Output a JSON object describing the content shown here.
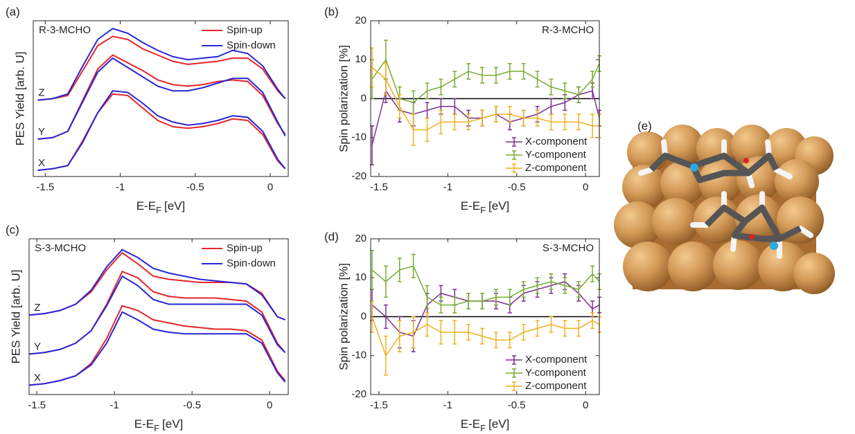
{
  "chart_data": [
    {
      "type": "line",
      "panel_label": "(a)",
      "annotation": "R-3-MCHO",
      "ylabel": "PES Yield [arb. U]",
      "xlabel": {
        "main": "E-E",
        "sub": "F",
        "unit": "[eV]"
      },
      "xlim": [
        -1.58,
        0.12
      ],
      "xticks": [
        -1.5,
        -1,
        -0.5,
        0
      ],
      "ylim": [
        0,
        10
      ],
      "legend": "upper right",
      "offset_labels": [
        "Z",
        "Y",
        "X"
      ],
      "x": [
        -1.55,
        -1.45,
        -1.35,
        -1.25,
        -1.15,
        -1.05,
        -0.95,
        -0.85,
        -0.75,
        -0.65,
        -0.55,
        -0.45,
        -0.35,
        -0.25,
        -0.15,
        -0.05,
        0.05,
        0.1
      ],
      "series": [
        {
          "name": "Spin-up",
          "color": "#e8242a",
          "values": [
            [
              4.9,
              5.0,
              5.2,
              6.8,
              8.4,
              9.0,
              8.8,
              8.2,
              7.8,
              7.4,
              7.2,
              7.3,
              7.4,
              7.6,
              7.6,
              6.9,
              5.5,
              5.0
            ],
            [
              2.4,
              2.5,
              2.9,
              4.9,
              6.9,
              7.8,
              7.3,
              6.8,
              6.2,
              5.9,
              5.8,
              5.9,
              6.1,
              6.2,
              6.1,
              5.2,
              3.4,
              2.7
            ],
            [
              0.4,
              0.5,
              0.7,
              2.3,
              4.1,
              5.3,
              5.2,
              4.4,
              3.6,
              3.2,
              3.1,
              3.2,
              3.4,
              3.7,
              3.6,
              2.7,
              1.0,
              0.5
            ]
          ]
        },
        {
          "name": "Spin-down",
          "color": "#2626d9",
          "values": [
            [
              4.9,
              5.0,
              5.3,
              7.1,
              8.8,
              9.5,
              9.2,
              8.6,
              8.1,
              7.7,
              7.5,
              7.6,
              7.7,
              8.1,
              7.9,
              7.1,
              5.6,
              5.0
            ],
            [
              2.4,
              2.5,
              2.9,
              4.8,
              6.7,
              7.6,
              7.0,
              6.4,
              5.8,
              5.5,
              5.5,
              5.7,
              6.0,
              6.3,
              6.3,
              5.4,
              3.5,
              2.6
            ],
            [
              0.4,
              0.5,
              0.7,
              2.2,
              4.1,
              5.5,
              5.4,
              4.7,
              3.9,
              3.5,
              3.3,
              3.4,
              3.6,
              3.9,
              3.8,
              2.9,
              1.1,
              0.5
            ]
          ]
        }
      ]
    },
    {
      "type": "errorbar",
      "panel_label": "(b)",
      "annotation": "R-3-MCHO",
      "ylabel": "Spin polarization [%]",
      "xlabel": {
        "main": "E-E",
        "sub": "F",
        "unit": "[eV]"
      },
      "xlim": [
        -1.56,
        0.1
      ],
      "xticks": [
        -1.5,
        -1,
        -0.5,
        0
      ],
      "ylim": [
        -20,
        20
      ],
      "yticks": [
        -20,
        -10,
        0,
        10,
        20
      ],
      "hline": 0,
      "legend": "lower right",
      "x": [
        -1.55,
        -1.45,
        -1.35,
        -1.25,
        -1.15,
        -1.05,
        -0.95,
        -0.85,
        -0.75,
        -0.65,
        -0.55,
        -0.45,
        -0.35,
        -0.25,
        -0.15,
        -0.05,
        0.05,
        0.1
      ],
      "series": [
        {
          "name": "X-component",
          "color": "#7e2f8e",
          "values": [
            -12,
            2,
            -3,
            -4,
            -3,
            -2,
            -2,
            -5,
            -5,
            -4,
            -6,
            -5,
            -4,
            -2,
            -1,
            1,
            2,
            -5
          ],
          "errors": [
            5,
            3,
            3,
            3,
            2,
            2,
            2,
            2,
            2,
            2,
            2,
            2,
            2,
            2,
            2,
            2,
            2,
            2
          ]
        },
        {
          "name": "Y-component",
          "color": "#77ac30",
          "values": [
            5,
            10,
            0,
            -1,
            2,
            3,
            5,
            7,
            6,
            6,
            7,
            7,
            5,
            3,
            2,
            1,
            5,
            9
          ],
          "errors": [
            5,
            5,
            3,
            3,
            2,
            2,
            2,
            2,
            2,
            2,
            2,
            2,
            2,
            2,
            2,
            2,
            2,
            2
          ]
        },
        {
          "name": "Z-component",
          "color": "#edb120",
          "values": [
            8,
            5,
            -2,
            -8,
            -8,
            -6,
            -6,
            -6,
            -5,
            -4,
            -4,
            -5,
            -5,
            -6,
            -6,
            -6,
            -7,
            -7
          ],
          "errors": [
            5,
            4,
            3,
            4,
            3,
            3,
            2,
            2,
            2,
            2,
            2,
            2,
            2,
            2,
            2,
            2,
            3,
            3
          ]
        }
      ]
    },
    {
      "type": "line",
      "panel_label": "(c)",
      "annotation": "S-3-MCHO",
      "ylabel": "PES Yield [arb. U]",
      "xlabel": {
        "main": "E-E",
        "sub": "F",
        "unit": "[eV]"
      },
      "xlim": [
        -1.55,
        0.12
      ],
      "xticks": [
        -1.5,
        -1,
        -0.5,
        0
      ],
      "ylim": [
        0,
        10
      ],
      "legend": "upper right",
      "offset_labels": [
        "Z",
        "Y",
        "X"
      ],
      "x": [
        -1.55,
        -1.45,
        -1.35,
        -1.25,
        -1.15,
        -1.05,
        -0.95,
        -0.85,
        -0.75,
        -0.65,
        -0.55,
        -0.45,
        -0.35,
        -0.25,
        -0.15,
        -0.05,
        0.05,
        0.1
      ],
      "series": [
        {
          "name": "Spin-up",
          "color": "#e8242a",
          "values": [
            [
              5.1,
              5.2,
              5.4,
              5.8,
              6.6,
              8.0,
              9.1,
              8.4,
              7.6,
              7.4,
              7.3,
              7.2,
              7.2,
              7.2,
              7.1,
              6.5,
              5.0,
              4.8
            ],
            [
              2.6,
              2.7,
              2.9,
              3.3,
              4.1,
              5.8,
              7.9,
              7.5,
              6.6,
              6.3,
              6.2,
              6.2,
              6.2,
              6.1,
              6.0,
              5.3,
              3.3,
              2.7
            ],
            [
              0.6,
              0.7,
              0.9,
              1.2,
              2.0,
              3.6,
              5.7,
              5.4,
              4.8,
              4.6,
              4.4,
              4.3,
              4.2,
              4.2,
              4.1,
              3.5,
              1.5,
              0.9
            ]
          ]
        },
        {
          "name": "Spin-down",
          "color": "#2626d9",
          "values": [
            [
              5.1,
              5.2,
              5.4,
              5.8,
              6.7,
              8.2,
              9.3,
              8.8,
              8.1,
              7.8,
              7.6,
              7.4,
              7.3,
              7.2,
              7.1,
              6.4,
              5.0,
              4.8
            ],
            [
              2.6,
              2.7,
              2.9,
              3.3,
              4.1,
              5.7,
              7.6,
              7.0,
              6.1,
              5.8,
              5.8,
              5.8,
              5.8,
              5.8,
              5.8,
              5.1,
              3.2,
              2.7
            ],
            [
              0.6,
              0.7,
              0.9,
              1.2,
              1.9,
              3.3,
              5.3,
              4.8,
              4.2,
              4.0,
              3.9,
              3.9,
              3.9,
              3.9,
              3.9,
              3.3,
              1.4,
              0.8
            ]
          ]
        }
      ]
    },
    {
      "type": "errorbar",
      "panel_label": "(d)",
      "annotation": "S-3-MCHO",
      "ylabel": "Spin polarization [%]",
      "xlabel": {
        "main": "E-E",
        "sub": "F",
        "unit": "[eV]"
      },
      "xlim": [
        -1.56,
        0.1
      ],
      "xticks": [
        -1.5,
        -1,
        -0.5,
        0
      ],
      "ylim": [
        -20,
        20
      ],
      "yticks": [
        -20,
        -10,
        0,
        10,
        20
      ],
      "hline": 0,
      "legend": "lower right",
      "x": [
        -1.55,
        -1.45,
        -1.35,
        -1.25,
        -1.15,
        -1.05,
        -0.95,
        -0.85,
        -0.75,
        -0.65,
        -0.55,
        -0.45,
        -0.35,
        -0.25,
        -0.15,
        -0.05,
        0.05,
        0.1
      ],
      "series": [
        {
          "name": "X-component",
          "color": "#7e2f8e",
          "values": [
            3,
            0,
            -4,
            -5,
            3,
            6,
            5,
            4,
            4,
            4,
            3,
            6,
            7,
            8,
            9,
            6,
            2,
            3
          ],
          "errors": [
            4,
            3,
            4,
            4,
            3,
            2,
            2,
            2,
            2,
            2,
            2,
            2,
            2,
            2,
            2,
            2,
            2,
            2
          ]
        },
        {
          "name": "Y-component",
          "color": "#77ac30",
          "values": [
            12,
            9,
            12,
            13,
            5,
            3,
            3,
            4,
            4,
            5,
            5,
            7,
            8,
            9,
            8,
            7,
            11,
            9
          ],
          "errors": [
            5,
            4,
            3,
            3,
            3,
            2,
            2,
            2,
            2,
            2,
            2,
            2,
            2,
            2,
            2,
            2,
            2,
            2
          ]
        },
        {
          "name": "Z-component",
          "color": "#edb120",
          "values": [
            0,
            -10,
            -5,
            -4,
            -2,
            -4,
            -4,
            -4,
            -5,
            -6,
            -6,
            -4,
            -3,
            -2,
            -3,
            -3,
            -1,
            -2
          ],
          "errors": [
            4,
            5,
            4,
            4,
            3,
            3,
            3,
            2,
            2,
            2,
            2,
            2,
            2,
            2,
            2,
            2,
            2,
            2
          ]
        }
      ]
    }
  ],
  "image_panel": {
    "label": "(e)"
  }
}
